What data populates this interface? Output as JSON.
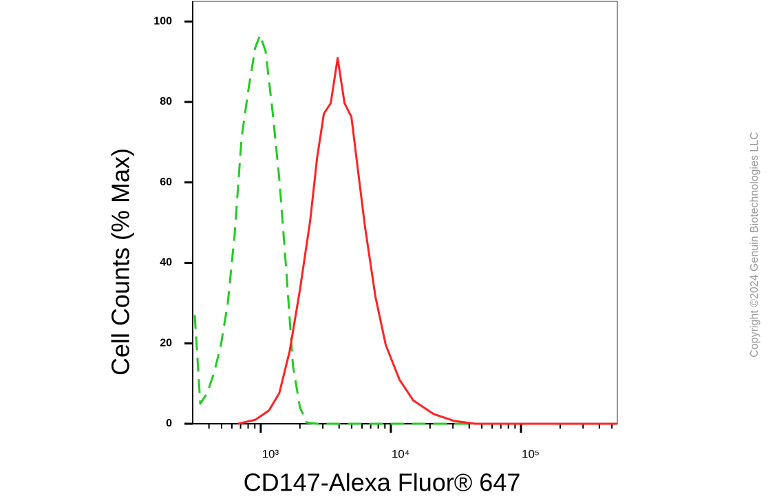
{
  "chart_data": {
    "type": "line",
    "xlabel": "CD147-Alexa Fluor® 647",
    "ylabel": "Cell Counts (% Max)",
    "watermark": "Copyright ©2024 Genuin Biotechnologies LLC",
    "xscale": "log",
    "xlim": [
      300,
      550000
    ],
    "ylim": [
      0,
      105
    ],
    "xticks": [
      {
        "value": 1000,
        "label": "10³"
      },
      {
        "value": 10000,
        "label": "10⁴"
      },
      {
        "value": 100000,
        "label": "10⁵"
      }
    ],
    "yticks": [
      0,
      20,
      40,
      60,
      80,
      100
    ],
    "grid": false,
    "series": [
      {
        "color": "#22cc22",
        "line_style": "dashed",
        "x": [
          311,
          343,
          388,
          438,
          494,
          558,
          630,
          712,
          804,
          908,
          988,
          1089,
          1229,
          1388,
          1568,
          1770,
          2000,
          2258,
          2708,
          548000
        ],
        "values": [
          27,
          5,
          7.6,
          12.7,
          19.6,
          30,
          47,
          71,
          83,
          93.5,
          96.6,
          92.6,
          78,
          61,
          38.5,
          14.4,
          4.1,
          0.3,
          0,
          0
        ]
      },
      {
        "color": "#ff2222",
        "line_style": "solid",
        "x": [
          670,
          908,
          1157,
          1388,
          1665,
          2000,
          2399,
          2708,
          3058,
          3453,
          3899,
          4403,
          4972,
          5614,
          6340,
          7607,
          9129,
          11640,
          14840,
          21370,
          30770,
          44300,
          548000
        ],
        "values": [
          0,
          1,
          3.3,
          7.6,
          17.9,
          33.3,
          50.5,
          66,
          77.1,
          79.7,
          90.9,
          79.7,
          76.3,
          62.5,
          48.8,
          31.6,
          19.6,
          11,
          5.8,
          2.4,
          0.7,
          0,
          0
        ]
      }
    ]
  }
}
